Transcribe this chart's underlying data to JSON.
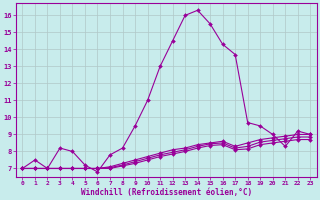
{
  "xlabel": "Windchill (Refroidissement éolien,°C)",
  "background_color": "#c8ecec",
  "grid_color": "#b0c8c8",
  "line_color": "#990099",
  "xlim": [
    -0.5,
    23.5
  ],
  "ylim": [
    6.5,
    16.7
  ],
  "xticks": [
    0,
    1,
    2,
    3,
    4,
    5,
    6,
    7,
    8,
    9,
    10,
    11,
    12,
    13,
    14,
    15,
    16,
    17,
    18,
    19,
    20,
    21,
    22,
    23
  ],
  "yticks": [
    7,
    8,
    9,
    10,
    11,
    12,
    13,
    14,
    15,
    16
  ],
  "line1_x": [
    0,
    1,
    2,
    3,
    4,
    5,
    6,
    7,
    8,
    9,
    10,
    11,
    12,
    13,
    14,
    15,
    16,
    17,
    18,
    19,
    20,
    21,
    22,
    23
  ],
  "line1_y": [
    7.0,
    7.5,
    7.0,
    8.2,
    8.0,
    7.2,
    6.8,
    7.8,
    8.2,
    9.5,
    11.0,
    13.0,
    14.5,
    16.0,
    16.3,
    15.5,
    14.3,
    13.7,
    9.7,
    9.5,
    9.0,
    8.3,
    9.2,
    9.0
  ],
  "line2_x": [
    0,
    1,
    2,
    3,
    4,
    5,
    6,
    7,
    8,
    9,
    10,
    11,
    12,
    13,
    14,
    15,
    16,
    17,
    18,
    19,
    20,
    21,
    22,
    23
  ],
  "line2_y": [
    7.0,
    7.0,
    7.0,
    7.0,
    7.0,
    7.0,
    7.0,
    7.1,
    7.3,
    7.5,
    7.7,
    7.9,
    8.1,
    8.2,
    8.4,
    8.5,
    8.6,
    8.3,
    8.5,
    8.7,
    8.8,
    8.9,
    9.0,
    9.0
  ],
  "line3_x": [
    0,
    1,
    2,
    3,
    4,
    5,
    6,
    7,
    8,
    9,
    10,
    11,
    12,
    13,
    14,
    15,
    16,
    17,
    18,
    19,
    20,
    21,
    22,
    23
  ],
  "line3_y": [
    7.0,
    7.0,
    7.0,
    7.0,
    7.0,
    7.0,
    7.0,
    7.05,
    7.2,
    7.4,
    7.6,
    7.8,
    7.95,
    8.1,
    8.3,
    8.45,
    8.5,
    8.2,
    8.3,
    8.55,
    8.65,
    8.75,
    8.85,
    8.85
  ],
  "line4_x": [
    0,
    1,
    2,
    3,
    4,
    5,
    6,
    7,
    8,
    9,
    10,
    11,
    12,
    13,
    14,
    15,
    16,
    17,
    18,
    19,
    20,
    21,
    22,
    23
  ],
  "line4_y": [
    7.0,
    7.0,
    7.0,
    7.0,
    7.0,
    7.0,
    7.0,
    7.0,
    7.15,
    7.3,
    7.5,
    7.7,
    7.85,
    8.0,
    8.2,
    8.35,
    8.4,
    8.1,
    8.15,
    8.4,
    8.5,
    8.6,
    8.7,
    8.7
  ]
}
